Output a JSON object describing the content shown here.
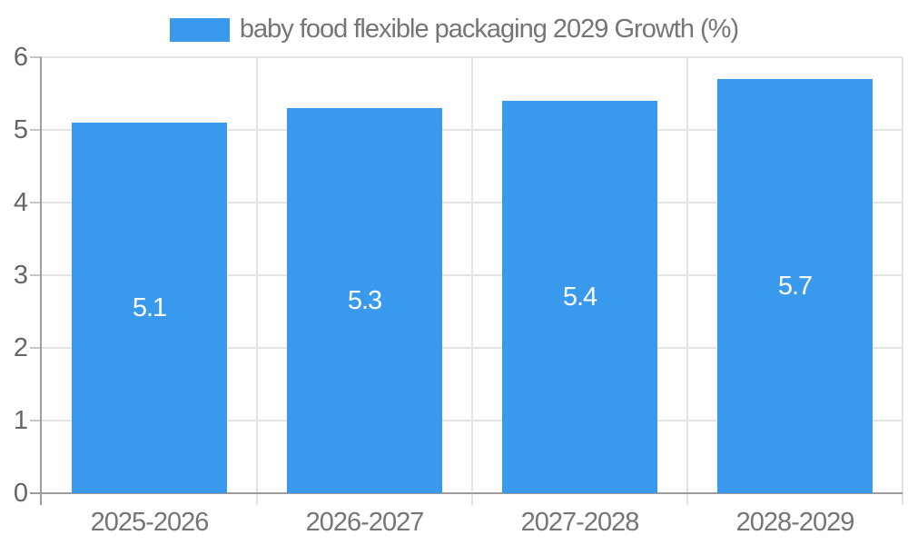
{
  "chart_data": {
    "type": "bar",
    "title": "baby food flexible packaging 2029 Growth (%)",
    "categories": [
      "2025-2026",
      "2026-2027",
      "2027-2028",
      "2028-2029"
    ],
    "values": [
      5.1,
      5.3,
      5.4,
      5.7
    ],
    "value_labels": [
      "5.1",
      "5.3",
      "5.4",
      "5.7"
    ],
    "xlabel": "",
    "ylabel": "",
    "ylim": [
      0,
      6
    ],
    "yticks": [
      0,
      1,
      2,
      3,
      4,
      5,
      6
    ],
    "grid": true,
    "legend_position": "top-center",
    "colors": {
      "bar": "#3999ec",
      "value_label": "#ffffff",
      "grid": "#e3e3e3",
      "tick": "#c4c4c4",
      "axis": "#9c9c9c",
      "y_tick_label": "#666666",
      "x_tick_label": "#757575",
      "legend_text": "#757575",
      "background": "#ffffff"
    }
  },
  "legend": {
    "label": "baby food flexible packaging 2029 Growth (%)",
    "swatch_color": "#3999ec"
  }
}
